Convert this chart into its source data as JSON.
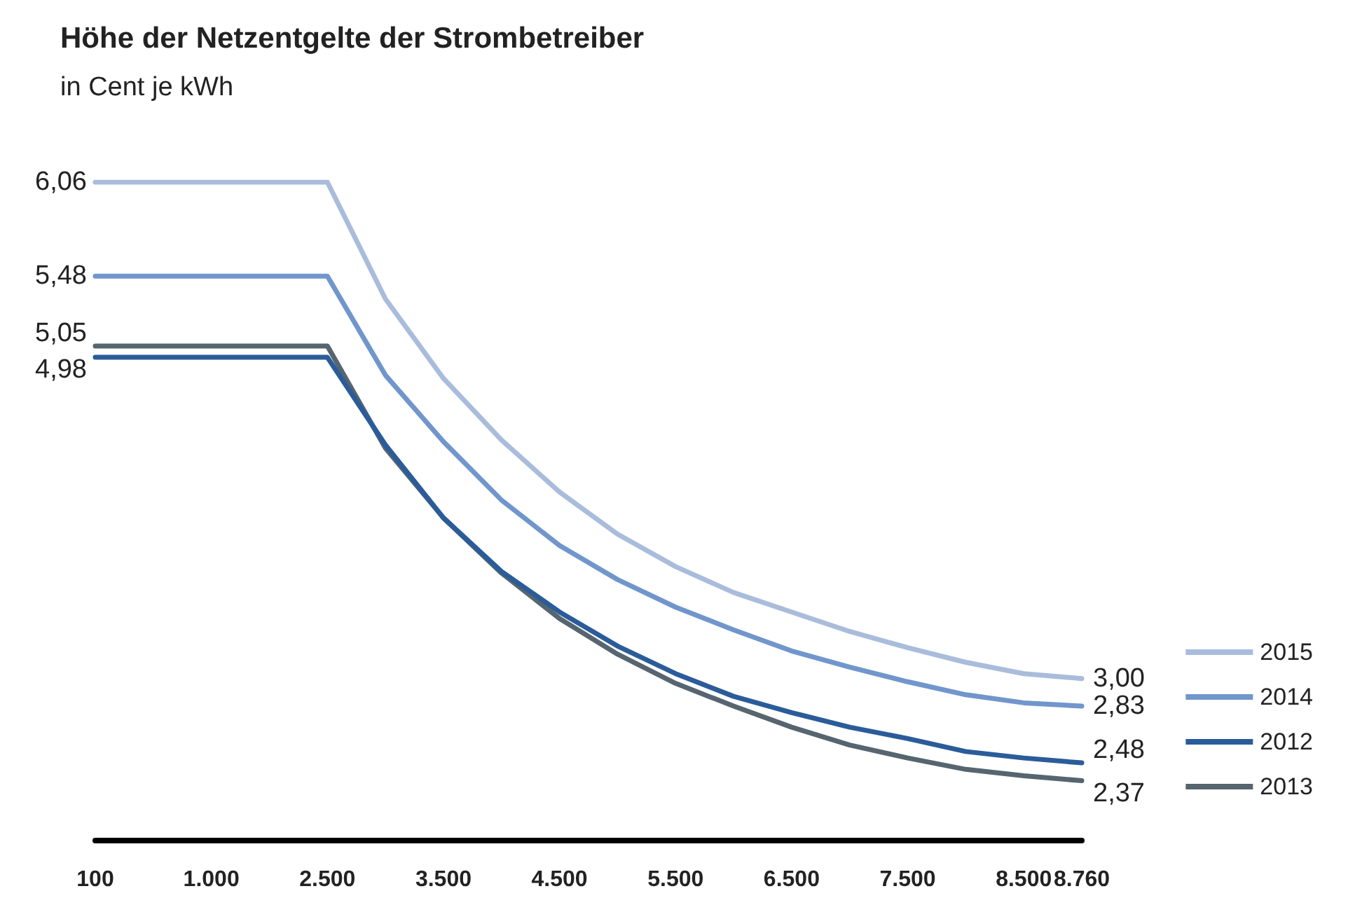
{
  "chart_data": {
    "type": "line",
    "title": "Höhe der Netzentgelte der Strombetreiber",
    "subtitle": "in Cent je kWh",
    "categories": [
      "100",
      null,
      "1.000",
      null,
      "2.500",
      null,
      "3.500",
      null,
      "4.500",
      null,
      "5.500",
      null,
      "6.500",
      null,
      "7.500",
      null,
      "8.500",
      "8.760"
    ],
    "series": [
      {
        "name": "2015",
        "color": "#a9bcdb",
        "values": [
          6.06,
          6.06,
          6.06,
          6.06,
          6.06,
          5.34,
          4.85,
          4.47,
          4.15,
          3.89,
          3.69,
          3.53,
          3.41,
          3.29,
          3.19,
          3.1,
          3.03,
          3.0
        ],
        "value_labels": [
          "6,06",
          null,
          null,
          null,
          null,
          null,
          null,
          null,
          null,
          null,
          null,
          null,
          null,
          null,
          null,
          null,
          null,
          "3,00"
        ]
      },
      {
        "name": "2014",
        "color": "#7096cc",
        "values": [
          5.48,
          5.48,
          5.48,
          5.48,
          5.48,
          4.87,
          4.46,
          4.1,
          3.82,
          3.61,
          3.44,
          3.3,
          3.17,
          3.07,
          2.98,
          2.9,
          2.85,
          2.83
        ],
        "value_labels": [
          "5,48",
          null,
          null,
          null,
          null,
          null,
          null,
          null,
          null,
          null,
          null,
          null,
          null,
          null,
          null,
          null,
          null,
          "2,83"
        ]
      },
      {
        "name": "2012",
        "color": "#2b5c9a",
        "values": [
          4.98,
          4.98,
          4.98,
          4.98,
          4.98,
          4.44,
          3.99,
          3.66,
          3.41,
          3.2,
          3.03,
          2.89,
          2.79,
          2.7,
          2.63,
          2.55,
          2.51,
          2.48
        ],
        "value_labels": [
          "4,98",
          null,
          null,
          null,
          null,
          null,
          null,
          null,
          null,
          null,
          null,
          null,
          null,
          null,
          null,
          null,
          null,
          "2,48"
        ]
      },
      {
        "name": "2013",
        "color": "#56656f",
        "values": [
          5.05,
          5.05,
          5.05,
          5.05,
          5.05,
          4.42,
          3.99,
          3.65,
          3.37,
          3.15,
          2.97,
          2.83,
          2.7,
          2.59,
          2.51,
          2.44,
          2.4,
          2.37
        ],
        "value_labels": [
          "5,05",
          null,
          null,
          null,
          null,
          null,
          null,
          null,
          null,
          null,
          null,
          null,
          null,
          null,
          null,
          null,
          null,
          "2,37"
        ]
      }
    ],
    "tick_labels": "x",
    "grid": false,
    "legend": "right"
  }
}
